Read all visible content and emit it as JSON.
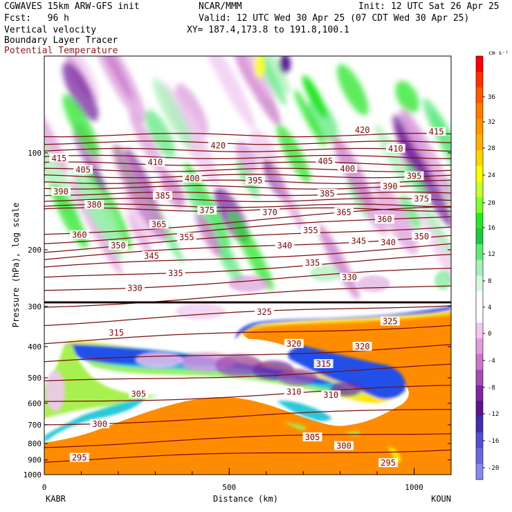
{
  "header": {
    "model": "CGWAVES 15km ARW-GFS init",
    "org": "NCAR/MMM",
    "init": "Init: 12 UTC Sat 26 Apr 25",
    "fcst": "Fcst:   96 h",
    "valid": "Valid: 12 UTC Wed 30 Apr 25 (07 CDT Wed 30 Apr 25)",
    "field1": "Vertical velocity",
    "field2": "Boundary Layer Tracer",
    "xy": "XY= 187.4,173.8 to 191.8,100.1",
    "field3": "Potential Temperature"
  },
  "colors": {
    "theta_contour": "#7a0c0c",
    "tracer_fill": "#ff8c00"
  },
  "chart_data": {
    "type": "heatmap",
    "xlabel": "Distance (km)",
    "ylabel": "Pressure (hPa), log scale",
    "xlim": [
      0,
      1100
    ],
    "ylim": [
      1000,
      50
    ],
    "y_scale": "log",
    "x_ticks": [
      0,
      500,
      1000
    ],
    "y_ticks": [
      100,
      200,
      300,
      400,
      500,
      600,
      700,
      800,
      900,
      1000
    ],
    "endpoints": {
      "left": "KABR",
      "right": "KOUN"
    },
    "colorbar": {
      "units": "cm s⁻¹",
      "ticks": [
        36,
        32,
        28,
        24,
        20,
        16,
        12,
        8,
        4,
        0,
        -4,
        -8,
        -12,
        -16,
        -20
      ],
      "colors": [
        "#ff0000",
        "#ff3000",
        "#ff5800",
        "#ff7a00",
        "#ff9500",
        "#ffb000",
        "#ffd500",
        "#ffff00",
        "#c8ff30",
        "#80ff30",
        "#28e628",
        "#20c840",
        "#60e880",
        "#a8f0b8",
        "#d8f8e0",
        "#ffffff",
        "#ffffff",
        "#f0c8f0",
        "#dc9edc",
        "#c878c8",
        "#a050b0",
        "#7828a0",
        "#5a1490",
        "#4030b0",
        "#5050d0",
        "#6868e0",
        "#8888f0"
      ]
    },
    "theta_labels": [
      {
        "v": "415",
        "x": 40,
        "p": 104
      },
      {
        "v": "405",
        "x": 105,
        "p": 113
      },
      {
        "v": "410",
        "x": 300,
        "p": 107
      },
      {
        "v": "420",
        "x": 470,
        "p": 95
      },
      {
        "v": "400",
        "x": 400,
        "p": 120
      },
      {
        "v": "395",
        "x": 570,
        "p": 122
      },
      {
        "v": "405",
        "x": 760,
        "p": 106
      },
      {
        "v": "420",
        "x": 860,
        "p": 85
      },
      {
        "v": "410",
        "x": 950,
        "p": 97
      },
      {
        "v": "415",
        "x": 1060,
        "p": 86
      },
      {
        "v": "400",
        "x": 820,
        "p": 112
      },
      {
        "v": "395",
        "x": 1000,
        "p": 118
      },
      {
        "v": "390",
        "x": 45,
        "p": 132
      },
      {
        "v": "380",
        "x": 135,
        "p": 145
      },
      {
        "v": "385",
        "x": 320,
        "p": 136
      },
      {
        "v": "385",
        "x": 765,
        "p": 134
      },
      {
        "v": "390",
        "x": 935,
        "p": 127
      },
      {
        "v": "375",
        "x": 1020,
        "p": 139
      },
      {
        "v": "375",
        "x": 440,
        "p": 151
      },
      {
        "v": "370",
        "x": 610,
        "p": 153
      },
      {
        "v": "365",
        "x": 810,
        "p": 153
      },
      {
        "v": "360",
        "x": 920,
        "p": 161
      },
      {
        "v": "360",
        "x": 95,
        "p": 180
      },
      {
        "v": "365",
        "x": 310,
        "p": 167
      },
      {
        "v": "355",
        "x": 385,
        "p": 183
      },
      {
        "v": "355",
        "x": 720,
        "p": 174
      },
      {
        "v": "350",
        "x": 200,
        "p": 194
      },
      {
        "v": "345",
        "x": 290,
        "p": 209
      },
      {
        "v": "350",
        "x": 1020,
        "p": 182
      },
      {
        "v": "340",
        "x": 650,
        "p": 194
      },
      {
        "v": "345",
        "x": 850,
        "p": 188
      },
      {
        "v": "340",
        "x": 930,
        "p": 190
      },
      {
        "v": "335",
        "x": 355,
        "p": 237
      },
      {
        "v": "335",
        "x": 725,
        "p": 220
      },
      {
        "v": "330",
        "x": 245,
        "p": 263
      },
      {
        "v": "330",
        "x": 825,
        "p": 244
      },
      {
        "v": "325",
        "x": 595,
        "p": 312
      },
      {
        "v": "325",
        "x": 935,
        "p": 334
      },
      {
        "v": "320",
        "x": 675,
        "p": 392
      },
      {
        "v": "320",
        "x": 860,
        "p": 400
      },
      {
        "v": "315",
        "x": 195,
        "p": 362
      },
      {
        "v": "315",
        "x": 755,
        "p": 453
      },
      {
        "v": "310",
        "x": 675,
        "p": 553
      },
      {
        "v": "310",
        "x": 775,
        "p": 566
      },
      {
        "v": "305",
        "x": 255,
        "p": 562
      },
      {
        "v": "305",
        "x": 725,
        "p": 765
      },
      {
        "v": "300",
        "x": 150,
        "p": 697
      },
      {
        "v": "300",
        "x": 810,
        "p": 815
      },
      {
        "v": "295",
        "x": 95,
        "p": 886
      },
      {
        "v": "295",
        "x": 930,
        "p": 920
      }
    ]
  }
}
